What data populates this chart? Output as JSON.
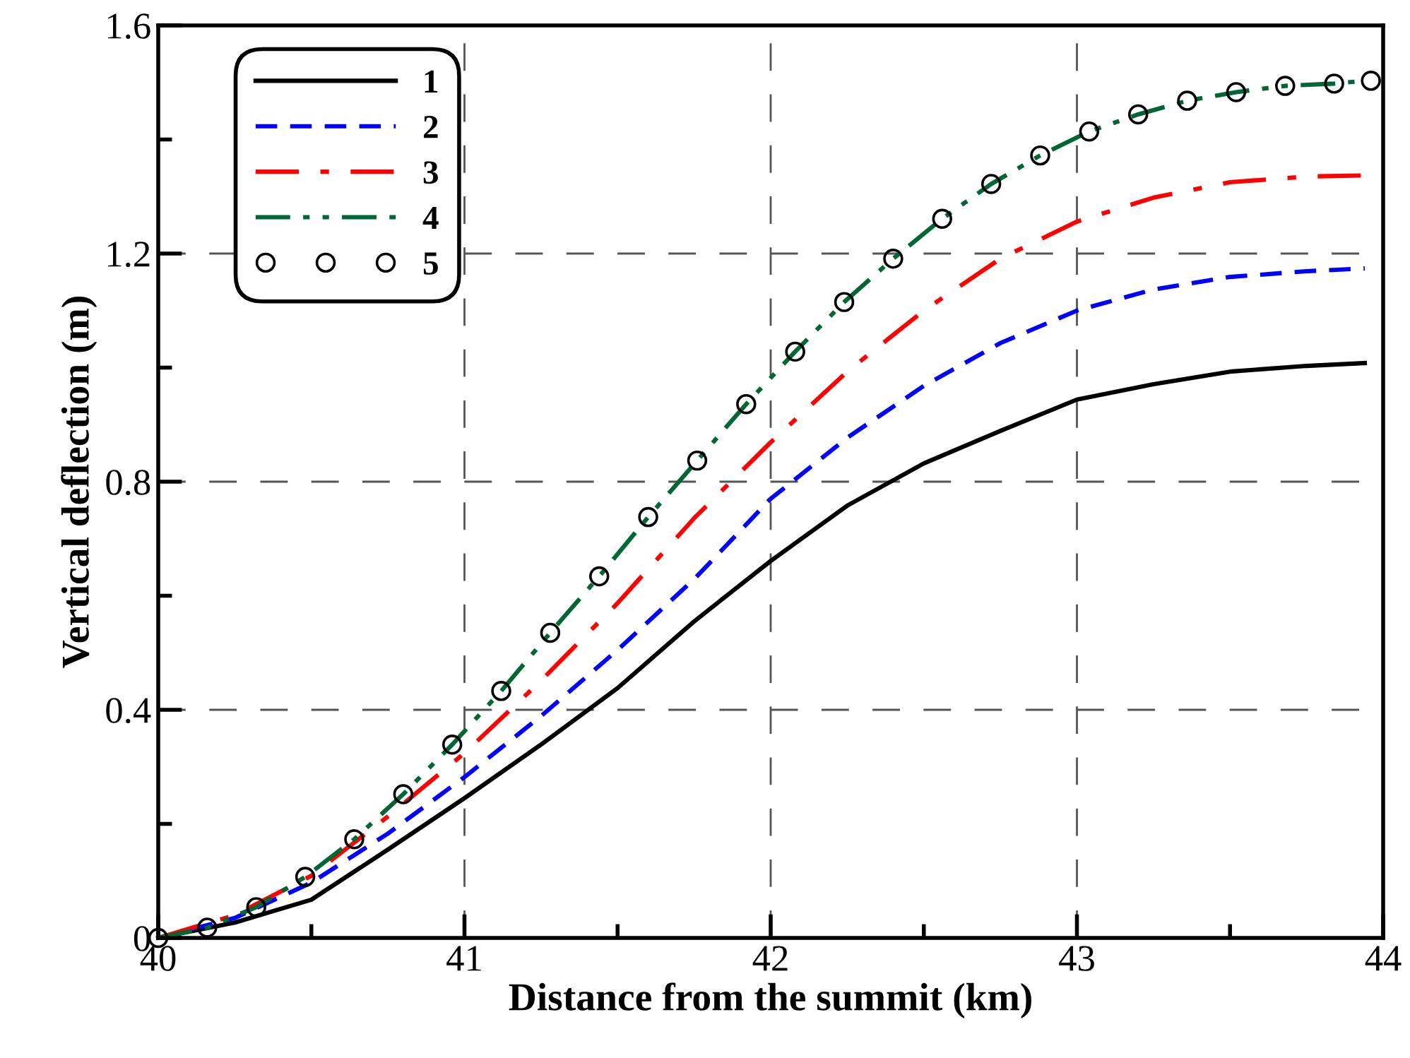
{
  "chart_data": {
    "type": "line",
    "xlabel": "Distance from the summit (km)",
    "ylabel": "Vertical deflection (m)",
    "xlim": [
      40,
      44
    ],
    "ylim": [
      0,
      1.6
    ],
    "xticks": [
      40,
      {
        "value": 40.5,
        "label": null
      },
      41,
      {
        "value": 41.5,
        "label": null
      },
      42,
      {
        "value": 42.5,
        "label": null
      },
      43,
      {
        "value": 43.5,
        "label": null
      },
      44
    ],
    "yticks": [
      0,
      {
        "value": 0.2,
        "label": null
      },
      0.4,
      {
        "value": 0.6,
        "label": null
      },
      0.8,
      {
        "value": 1.0,
        "label": null
      },
      1.2,
      {
        "value": 1.4,
        "label": null
      },
      1.6
    ],
    "grid": true,
    "legend": "top left",
    "series": [
      {
        "name": "1",
        "color": "#000000",
        "line_style": "solid",
        "marker": "none",
        "x": [
          40,
          40.25,
          40.5,
          40.75,
          41,
          41.25,
          41.5,
          41.75,
          42,
          42.25,
          42.5,
          42.75,
          43,
          43.25,
          43.5,
          43.75,
          43.94
        ],
        "values": [
          0,
          0.027,
          0.067,
          0.155,
          0.245,
          0.339,
          0.438,
          0.555,
          0.661,
          0.758,
          0.832,
          0.889,
          0.944,
          0.971,
          0.993,
          1.003,
          1.008
        ]
      },
      {
        "name": "2",
        "color": "#0000ff",
        "line_style": "dashed",
        "marker": "none",
        "x": [
          40,
          40.25,
          40.5,
          40.75,
          41,
          41.25,
          41.5,
          41.75,
          42,
          42.25,
          42.5,
          42.75,
          43,
          43.25,
          43.5,
          43.75,
          43.94
        ],
        "values": [
          0,
          0.035,
          0.097,
          0.183,
          0.282,
          0.389,
          0.505,
          0.629,
          0.77,
          0.877,
          0.968,
          1.043,
          1.1,
          1.137,
          1.159,
          1.169,
          1.174
        ]
      },
      {
        "name": "3",
        "color": "#ff0000",
        "line_style": "dashdot",
        "marker": "none",
        "x": [
          40,
          40.25,
          40.5,
          40.75,
          41,
          41.25,
          41.5,
          41.75,
          42,
          42.25,
          42.5,
          42.75,
          43,
          43.25,
          43.5,
          43.75,
          43.94
        ],
        "values": [
          0,
          0.04,
          0.109,
          0.213,
          0.324,
          0.451,
          0.587,
          0.736,
          0.869,
          0.993,
          1.1,
          1.191,
          1.256,
          1.298,
          1.325,
          1.335,
          1.337
        ]
      },
      {
        "name": "4",
        "color": "#006633",
        "line_style": "dashdotdot",
        "marker": "none",
        "x": [
          40,
          40.16,
          40.32,
          40.48,
          40.64,
          40.8,
          40.96,
          41.12,
          41.28,
          41.44,
          41.6,
          41.76,
          41.92,
          42.08,
          42.24,
          42.4,
          42.56,
          42.72,
          42.88,
          43.04,
          43.2,
          43.36,
          43.52,
          43.68,
          43.84,
          43.94
        ],
        "values": [
          0,
          0.018,
          0.054,
          0.107,
          0.173,
          0.252,
          0.339,
          0.433,
          0.535,
          0.634,
          0.738,
          0.837,
          0.936,
          1.028,
          1.115,
          1.191,
          1.261,
          1.322,
          1.372,
          1.414,
          1.444,
          1.468,
          1.483,
          1.494,
          1.498,
          1.503
        ]
      },
      {
        "name": "5",
        "type": "scatter",
        "color": "#000000",
        "marker": "circle",
        "x": [
          40,
          40.16,
          40.32,
          40.48,
          40.64,
          40.8,
          40.96,
          41.12,
          41.28,
          41.44,
          41.6,
          41.76,
          41.92,
          42.08,
          42.24,
          42.4,
          42.56,
          42.72,
          42.88,
          43.04,
          43.2,
          43.36,
          43.52,
          43.68,
          43.84,
          43.96
        ],
        "values": [
          0,
          0.018,
          0.054,
          0.107,
          0.173,
          0.252,
          0.339,
          0.433,
          0.535,
          0.634,
          0.738,
          0.837,
          0.936,
          1.028,
          1.115,
          1.191,
          1.261,
          1.322,
          1.372,
          1.414,
          1.444,
          1.468,
          1.483,
          1.494,
          1.498,
          1.503
        ]
      }
    ]
  }
}
